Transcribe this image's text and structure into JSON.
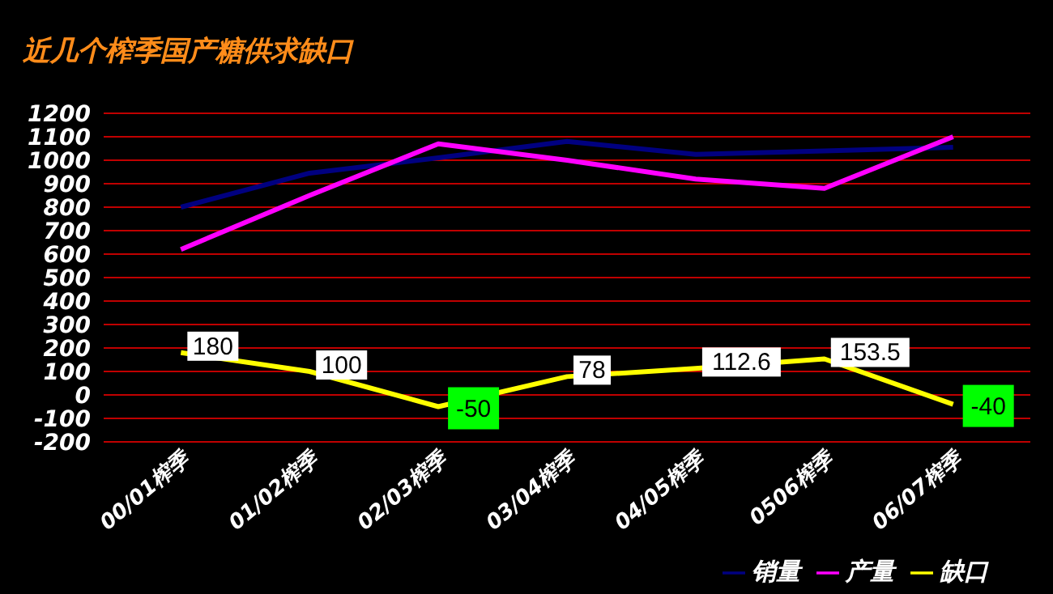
{
  "chart_data": {
    "type": "line",
    "title": "近几个榨季国产糖供求缺口",
    "categories": [
      "00/01榨季",
      "01/02榨季",
      "02/03榨季",
      "03/04榨季",
      "04/05榨季",
      "0506榨季",
      "06/07榨季"
    ],
    "series": [
      {
        "name": "销量",
        "color": "#000080",
        "values": [
          800,
          945,
          1010,
          1080,
          1025,
          1040,
          1055
        ]
      },
      {
        "name": "产量",
        "color": "#ff00ff",
        "values": [
          620,
          850,
          1070,
          1000,
          920,
          880,
          1100
        ]
      },
      {
        "name": "缺口",
        "color": "#ffff00",
        "values": [
          180,
          100,
          -50,
          78,
          112.6,
          153.5,
          -40
        ],
        "value_labels": [
          "180",
          "100",
          "-50",
          "78",
          "112.6",
          "153.5",
          "-40"
        ]
      }
    ],
    "ylim": [
      -200,
      1200
    ],
    "yticks": [
      -200,
      -100,
      0,
      100,
      200,
      300,
      400,
      500,
      600,
      700,
      800,
      900,
      1000,
      1100,
      1200
    ],
    "grid": "y",
    "legend": "bottom right",
    "marker": "none",
    "line_style": "solid"
  }
}
